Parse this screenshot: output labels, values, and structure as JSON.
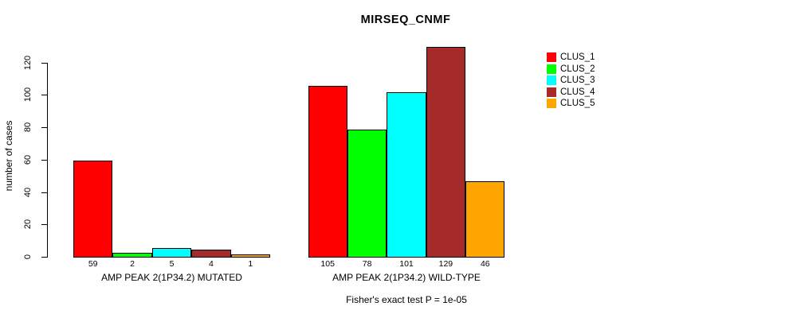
{
  "title": "MIRSEQ_CNMF",
  "chart_data": {
    "type": "bar",
    "title": "MIRSEQ_CNMF",
    "ylabel": "number of cases",
    "xlabel": "",
    "ylim": [
      0,
      120
    ],
    "yticks": [
      0,
      20,
      40,
      60,
      80,
      100,
      120
    ],
    "grid": false,
    "legend_position": "right",
    "categories": [
      "AMP PEAK 2(1P34.2) MUTATED",
      "AMP PEAK 2(1P34.2) WILD-TYPE"
    ],
    "series": [
      {
        "name": "CLUS_1",
        "color": "#ff0000",
        "values": [
          59,
          105
        ]
      },
      {
        "name": "CLUS_2",
        "color": "#00ff00",
        "values": [
          2,
          78
        ]
      },
      {
        "name": "CLUS_3",
        "color": "#00ffff",
        "values": [
          5,
          101
        ]
      },
      {
        "name": "CLUS_4",
        "color": "#a52a2a",
        "values": [
          4,
          129
        ]
      },
      {
        "name": "CLUS_5",
        "color": "#ffa500",
        "values": [
          1,
          46
        ]
      }
    ],
    "bar_value_labels_shown": true,
    "bar_border_color": "#000000",
    "text_color": "#000000",
    "footnote": "Fisher's exact test P = 1e-05"
  }
}
